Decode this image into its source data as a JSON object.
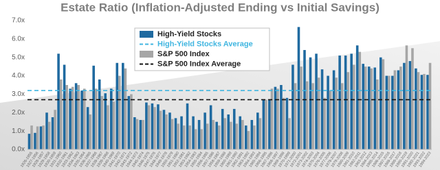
{
  "chart_data": {
    "type": "bar",
    "title": "Estate Ratio (Inflation-Adjusted Ending vs Initial Savings)",
    "categories": [
      "1926-1955",
      "1927-1956",
      "1928-1957",
      "1929-1958",
      "1930-1959",
      "1931-1960",
      "1932-1961",
      "1933-1962",
      "1934-1963",
      "1935-1964",
      "1936-1965",
      "1937-1966",
      "1938-1967",
      "1939-1968",
      "1940-1969",
      "1941-1970",
      "1942-1971",
      "1943-1972",
      "1944-1973",
      "1945-1974",
      "1946-1975",
      "1947-1976",
      "1948-1977",
      "1949-1978",
      "1950-1979",
      "1951-1980",
      "1952-1981",
      "1953-1982",
      "1954-1983",
      "1955-1984",
      "1956-1985",
      "1957-1986",
      "1958-1987",
      "1959-1988",
      "1960-1989",
      "1961-1990",
      "1962-1991",
      "1963-1992",
      "1964-1993",
      "1965-1994",
      "1966-1995",
      "1967-1996",
      "1968-1997",
      "1969-1998",
      "1970-1999",
      "1971-2000",
      "1972-2001",
      "1973-2002",
      "1974-2003",
      "1975-2004",
      "1976-2005",
      "1977-2006",
      "1978-2007",
      "1979-2008",
      "1980-2009",
      "1981-2010",
      "1982-2011",
      "1983-2012",
      "1984-2013",
      "1985-2014",
      "1986-2015",
      "1987-2016",
      "1988-2017",
      "1989-2018",
      "1990-2019",
      "1991-2020",
      "1992-2021",
      "1993-2022",
      "1994-2023"
    ],
    "series": [
      {
        "name": "High-Yield Stocks",
        "color": "#1f6aa0",
        "values": [
          0.85,
          0.9,
          1.25,
          2.0,
          1.75,
          5.2,
          4.6,
          3.3,
          3.6,
          3.2,
          2.3,
          4.55,
          3.8,
          3.05,
          3.3,
          4.7,
          4.7,
          2.9,
          1.75,
          1.6,
          2.55,
          2.5,
          2.45,
          2.15,
          2.0,
          1.7,
          1.8,
          2.5,
          1.8,
          1.6,
          2.0,
          2.4,
          1.5,
          2.2,
          1.9,
          2.2,
          1.8,
          1.3,
          1.6,
          2.0,
          2.7,
          2.7,
          3.4,
          3.5,
          2.8,
          4.6,
          6.65,
          5.4,
          5.0,
          5.2,
          4.35,
          4.0,
          4.3,
          5.1,
          5.1,
          5.2,
          5.65,
          4.65,
          4.5,
          4.45,
          5.0,
          4.0,
          4.0,
          4.3,
          4.7,
          4.8,
          4.4,
          4.05,
          4.05
        ]
      },
      {
        "name": "S&P 500 Index",
        "color": "#a6a6a6",
        "values": [
          1.3,
          1.25,
          1.3,
          1.5,
          2.15,
          3.8,
          3.5,
          3.4,
          3.5,
          3.3,
          1.9,
          3.3,
          2.9,
          2.4,
          2.6,
          4.0,
          4.4,
          3.0,
          1.65,
          1.6,
          2.4,
          2.3,
          2.1,
          1.9,
          1.65,
          1.4,
          1.3,
          1.3,
          1.1,
          1.1,
          1.4,
          1.6,
          1.3,
          1.7,
          1.5,
          1.4,
          1.6,
          1.0,
          1.3,
          1.7,
          2.7,
          3.3,
          3.3,
          2.8,
          1.7,
          3.6,
          4.5,
          3.7,
          3.6,
          3.9,
          2.8,
          3.2,
          3.9,
          3.6,
          4.2,
          4.6,
          5.3,
          4.5,
          4.4,
          3.8,
          4.9,
          4.0,
          4.3,
          4.5,
          5.65,
          5.5,
          4.2,
          4.1,
          4.7
        ]
      }
    ],
    "reference_lines": [
      {
        "name": "High-Yield Stocks Average",
        "value": 3.2,
        "color": "#3fb5e0"
      },
      {
        "name": "S&P 500 Index Average",
        "value": 2.7,
        "color": "#111111"
      }
    ],
    "ylim": [
      0,
      7
    ],
    "yticks": [
      {
        "value": 0,
        "label": "0.0x"
      },
      {
        "value": 1,
        "label": "1.0x"
      },
      {
        "value": 2,
        "label": "2.0x"
      },
      {
        "value": 3,
        "label": "3.0x"
      },
      {
        "value": 4,
        "label": "4.0x"
      },
      {
        "value": 5,
        "label": "5.0x"
      },
      {
        "value": 6,
        "label": "6.0x"
      },
      {
        "value": 7,
        "label": "7.0x"
      }
    ]
  }
}
